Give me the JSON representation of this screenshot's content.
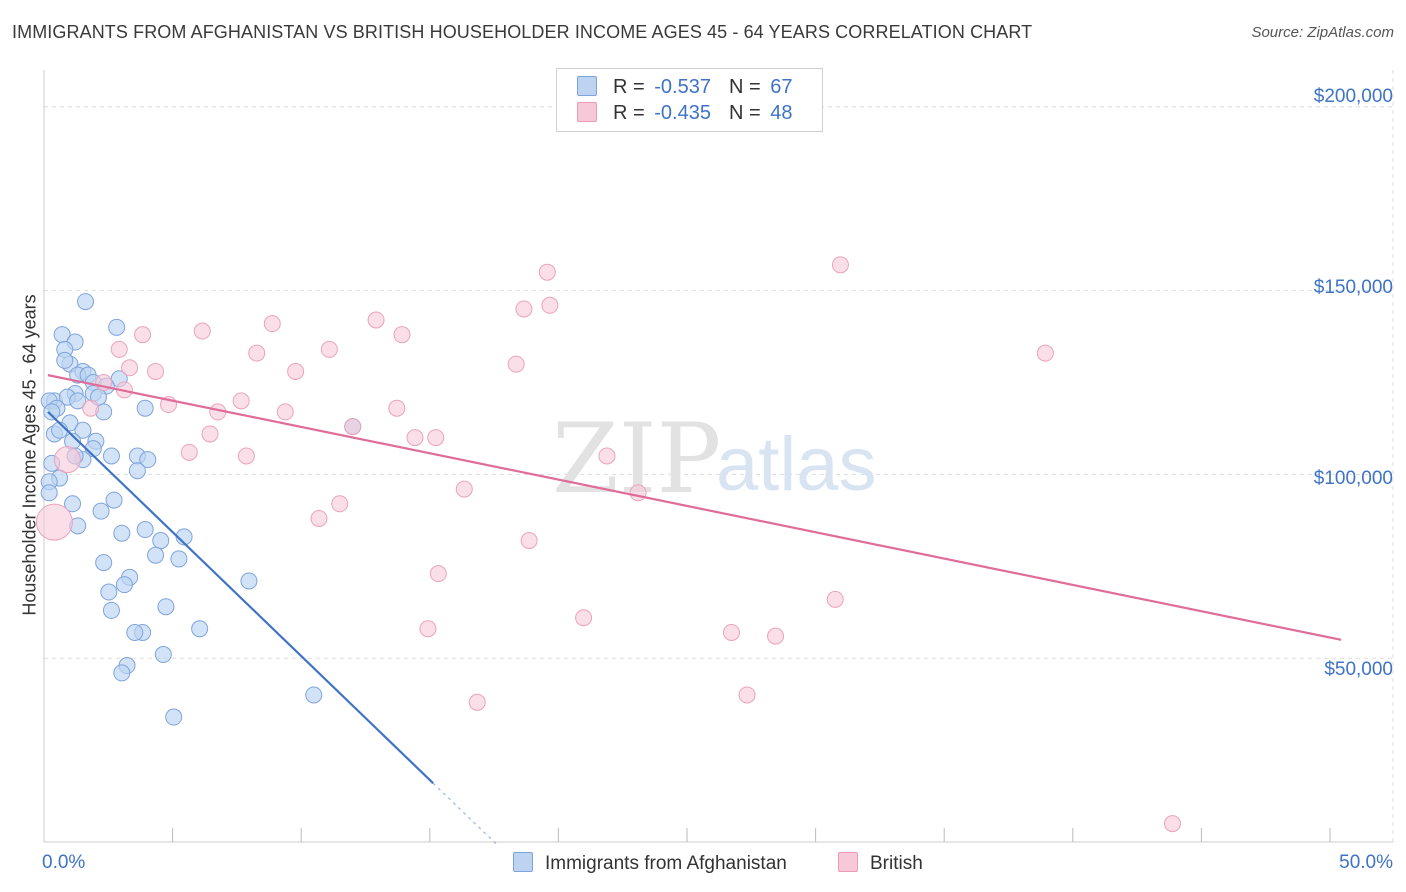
{
  "title": "IMMIGRANTS FROM AFGHANISTAN VS BRITISH HOUSEHOLDER INCOME AGES 45 - 64 YEARS CORRELATION CHART",
  "source": "Source: ZipAtlas.com",
  "watermark": {
    "zip": "ZIP",
    "atlas": "atlas"
  },
  "colors": {
    "blue": "#3f73c6",
    "blue_fill": "#bcd4f2",
    "pink": "#e06c99",
    "pink_fill": "#f7c8d8",
    "grid": "#dddddd",
    "tick_text": "#3f73c6"
  },
  "legend": {
    "r_label": "R =",
    "n_label": "N =",
    "series_a": {
      "r": "-0.537",
      "n": "67"
    },
    "series_b": {
      "r": "-0.435",
      "n": "48"
    }
  },
  "bottom_legend": {
    "series_a": "Immigrants from Afghanistan",
    "series_b": "British"
  },
  "chart_data": {
    "type": "scatter",
    "title": "IMMIGRANTS FROM AFGHANISTAN VS BRITISH HOUSEHOLDER INCOME AGES 45 - 64 YEARS CORRELATION CHART",
    "xlabel": "",
    "ylabel": "Householder Income Ages 45 - 64 years",
    "x_tick_labels": [
      "0.0%",
      "50.0%"
    ],
    "y_tick_labels": [
      "$50,000",
      "$100,000",
      "$150,000",
      "$200,000"
    ],
    "y_ticks": [
      50000,
      100000,
      150000,
      200000
    ],
    "xlim": [
      0,
      52
    ],
    "ylim": [
      0,
      210000
    ],
    "grid": true,
    "series": [
      {
        "name": "Immigrants from Afghanistan",
        "r": -0.537,
        "n": 67,
        "trend": {
          "x0": 0.15,
          "y0": 117000,
          "x1": 15.0,
          "y1": 16000,
          "dash_to_x": 17.5
        },
        "points": [
          [
            1.6,
            147000
          ],
          [
            2.8,
            140000
          ],
          [
            0.7,
            138000
          ],
          [
            1.2,
            136000
          ],
          [
            0.8,
            134000
          ],
          [
            1.0,
            130000
          ],
          [
            0.8,
            131000
          ],
          [
            1.5,
            128000
          ],
          [
            1.3,
            127000
          ],
          [
            1.7,
            127000
          ],
          [
            2.9,
            126000
          ],
          [
            1.9,
            125000
          ],
          [
            0.4,
            120000
          ],
          [
            2.4,
            124000
          ],
          [
            1.2,
            122000
          ],
          [
            1.9,
            122000
          ],
          [
            0.9,
            121000
          ],
          [
            0.2,
            120000
          ],
          [
            1.3,
            120000
          ],
          [
            0.5,
            118000
          ],
          [
            3.9,
            118000
          ],
          [
            0.3,
            117000
          ],
          [
            2.3,
            117000
          ],
          [
            1.0,
            114000
          ],
          [
            1.5,
            112000
          ],
          [
            0.4,
            111000
          ],
          [
            1.1,
            109000
          ],
          [
            2.0,
            109000
          ],
          [
            1.9,
            107000
          ],
          [
            2.6,
            105000
          ],
          [
            3.6,
            105000
          ],
          [
            4.0,
            104000
          ],
          [
            1.5,
            104000
          ],
          [
            0.3,
            103000
          ],
          [
            3.6,
            101000
          ],
          [
            0.6,
            99000
          ],
          [
            0.2,
            98000
          ],
          [
            0.2,
            95000
          ],
          [
            2.7,
            93000
          ],
          [
            1.1,
            92000
          ],
          [
            2.2,
            90000
          ],
          [
            1.3,
            86000
          ],
          [
            3.9,
            85000
          ],
          [
            3.0,
            84000
          ],
          [
            5.4,
            83000
          ],
          [
            4.5,
            82000
          ],
          [
            4.3,
            78000
          ],
          [
            5.2,
            77000
          ],
          [
            2.3,
            76000
          ],
          [
            3.3,
            72000
          ],
          [
            7.9,
            71000
          ],
          [
            3.1,
            70000
          ],
          [
            2.5,
            68000
          ],
          [
            4.7,
            64000
          ],
          [
            2.6,
            63000
          ],
          [
            6.0,
            58000
          ],
          [
            3.8,
            57000
          ],
          [
            3.5,
            57000
          ],
          [
            4.6,
            51000
          ],
          [
            3.2,
            48000
          ],
          [
            3.0,
            46000
          ],
          [
            10.4,
            40000
          ],
          [
            5.0,
            34000
          ],
          [
            11.9,
            113000
          ],
          [
            1.2,
            105000
          ],
          [
            0.6,
            112000
          ],
          [
            2.1,
            121000
          ]
        ]
      },
      {
        "name": "British",
        "r": -0.435,
        "n": 48,
        "trend": {
          "x0": 0.15,
          "y0": 127000,
          "x1": 50.0,
          "y1": 55000
        },
        "points": [
          [
            0.4,
            87000
          ],
          [
            0.9,
            104000
          ],
          [
            30.7,
            157000
          ],
          [
            19.4,
            155000
          ],
          [
            19.5,
            146000
          ],
          [
            18.5,
            145000
          ],
          [
            12.8,
            142000
          ],
          [
            8.8,
            141000
          ],
          [
            6.1,
            139000
          ],
          [
            3.8,
            138000
          ],
          [
            13.8,
            138000
          ],
          [
            2.9,
            134000
          ],
          [
            11.0,
            134000
          ],
          [
            8.2,
            133000
          ],
          [
            38.6,
            133000
          ],
          [
            18.2,
            130000
          ],
          [
            3.3,
            129000
          ],
          [
            4.3,
            128000
          ],
          [
            9.7,
            128000
          ],
          [
            2.3,
            125000
          ],
          [
            3.1,
            123000
          ],
          [
            7.6,
            120000
          ],
          [
            4.8,
            119000
          ],
          [
            1.8,
            118000
          ],
          [
            13.6,
            118000
          ],
          [
            9.3,
            117000
          ],
          [
            6.7,
            117000
          ],
          [
            11.9,
            113000
          ],
          [
            6.4,
            111000
          ],
          [
            14.3,
            110000
          ],
          [
            15.1,
            110000
          ],
          [
            5.6,
            106000
          ],
          [
            7.8,
            105000
          ],
          [
            21.7,
            105000
          ],
          [
            16.2,
            96000
          ],
          [
            22.9,
            95000
          ],
          [
            11.4,
            92000
          ],
          [
            10.6,
            88000
          ],
          [
            18.7,
            82000
          ],
          [
            15.2,
            73000
          ],
          [
            30.5,
            66000
          ],
          [
            20.8,
            61000
          ],
          [
            14.8,
            58000
          ],
          [
            26.5,
            57000
          ],
          [
            28.2,
            56000
          ],
          [
            27.1,
            40000
          ],
          [
            16.7,
            38000
          ],
          [
            43.5,
            5000
          ]
        ]
      }
    ]
  }
}
